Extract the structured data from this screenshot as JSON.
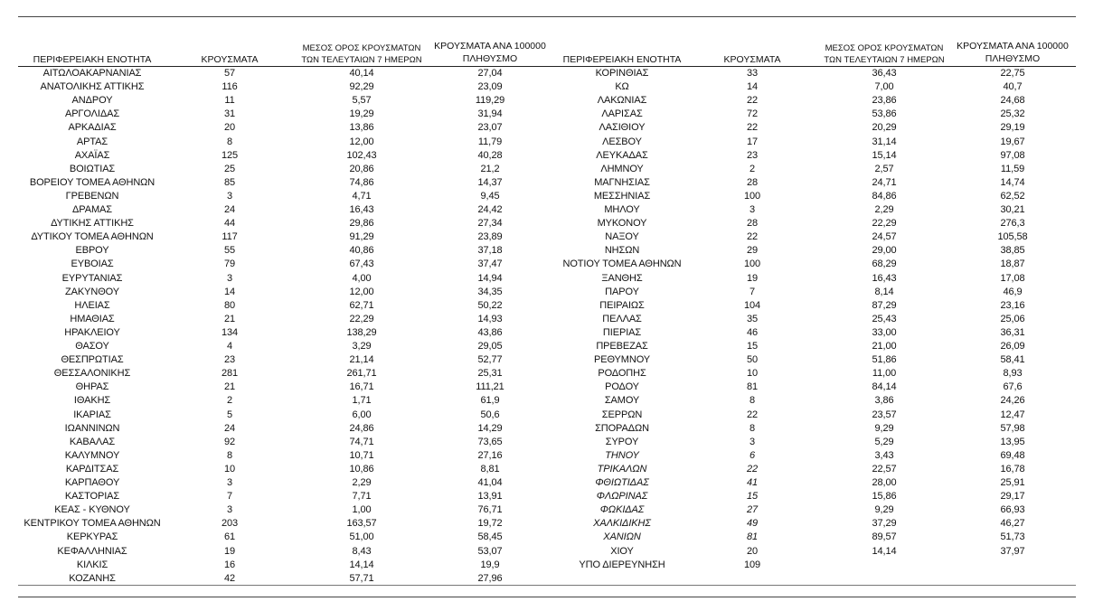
{
  "headers": {
    "name": "ΠΕΡΙΦΕΡΕΙΑΚΗ ΕΝΟΤΗΤΑ",
    "cases": "ΚΡΟΥΣΜΑΤΑ",
    "avg_line1": "ΜΕΣΟΣ ΟΡΟΣ ΚΡΟΥΣΜΑΤΩΝ",
    "avg_line2": "ΤΩΝ ΤΕΛΕΥΤΑΙΩΝ 7 ΗΜΕΡΩΝ",
    "per_line1": "ΚΡΟΥΣΜΑΤΑ ΑΝΑ 100000",
    "per_line2": "ΠΛΗΘΥΣΜΟ"
  },
  "left_rows": [
    [
      "ΑΙΤΩΛΟΑΚΑΡΝΑΝΙΑΣ",
      "57",
      "40,14",
      "27,04"
    ],
    [
      "ΑΝΑΤΟΛΙΚΗΣ ΑΤΤΙΚΗΣ",
      "116",
      "92,29",
      "23,09"
    ],
    [
      "ΑΝΔΡΟΥ",
      "11",
      "5,57",
      "119,29"
    ],
    [
      "ΑΡΓΟΛΙΔΑΣ",
      "31",
      "19,29",
      "31,94"
    ],
    [
      "ΑΡΚΑΔΙΑΣ",
      "20",
      "13,86",
      "23,07"
    ],
    [
      "ΑΡΤΑΣ",
      "8",
      "12,00",
      "11,79"
    ],
    [
      "ΑΧΑΪΑΣ",
      "125",
      "102,43",
      "40,28"
    ],
    [
      "ΒΟΙΩΤΙΑΣ",
      "25",
      "20,86",
      "21,2"
    ],
    [
      "ΒΟΡΕΙΟΥ ΤΟΜΕΑ ΑΘΗΝΩΝ",
      "85",
      "74,86",
      "14,37"
    ],
    [
      "ΓΡΕΒΕΝΩΝ",
      "3",
      "4,71",
      "9,45"
    ],
    [
      "ΔΡΑΜΑΣ",
      "24",
      "16,43",
      "24,42"
    ],
    [
      "ΔΥΤΙΚΗΣ ΑΤΤΙΚΗΣ",
      "44",
      "29,86",
      "27,34"
    ],
    [
      "ΔΥΤΙΚΟΥ ΤΟΜΕΑ ΑΘΗΝΩΝ",
      "117",
      "91,29",
      "23,89"
    ],
    [
      "ΕΒΡΟΥ",
      "55",
      "40,86",
      "37,18"
    ],
    [
      "ΕΥΒΟΙΑΣ",
      "79",
      "67,43",
      "37,47"
    ],
    [
      "ΕΥΡΥΤΑΝΙΑΣ",
      "3",
      "4,00",
      "14,94"
    ],
    [
      "ΖΑΚΥΝΘΟΥ",
      "14",
      "12,00",
      "34,35"
    ],
    [
      "ΗΛΕΙΑΣ",
      "80",
      "62,71",
      "50,22"
    ],
    [
      "ΗΜΑΘΙΑΣ",
      "21",
      "22,29",
      "14,93"
    ],
    [
      "ΗΡΑΚΛΕΙΟΥ",
      "134",
      "138,29",
      "43,86"
    ],
    [
      "ΘΑΣΟΥ",
      "4",
      "3,29",
      "29,05"
    ],
    [
      "ΘΕΣΠΡΩΤΙΑΣ",
      "23",
      "21,14",
      "52,77"
    ],
    [
      "ΘΕΣΣΑΛΟΝΙΚΗΣ",
      "281",
      "261,71",
      "25,31"
    ],
    [
      "ΘΗΡΑΣ",
      "21",
      "16,71",
      "111,21"
    ],
    [
      "ΙΘΑΚΗΣ",
      "2",
      "1,71",
      "61,9"
    ],
    [
      "ΙΚΑΡΙΑΣ",
      "5",
      "6,00",
      "50,6"
    ],
    [
      "ΙΩΑΝΝΙΝΩΝ",
      "24",
      "24,86",
      "14,29"
    ],
    [
      "ΚΑΒΑΛΑΣ",
      "92",
      "74,71",
      "73,65"
    ],
    [
      "ΚΑΛΥΜΝΟΥ",
      "8",
      "10,71",
      "27,16"
    ],
    [
      "ΚΑΡΔΙΤΣΑΣ",
      "10",
      "10,86",
      "8,81"
    ],
    [
      "ΚΑΡΠΑΘΟΥ",
      "3",
      "2,29",
      "41,04"
    ],
    [
      "ΚΑΣΤΟΡΙΑΣ",
      "7",
      "7,71",
      "13,91"
    ],
    [
      "ΚΕΑΣ - ΚΥΘΝΟΥ",
      "3",
      "1,00",
      "76,71"
    ],
    [
      "ΚΕΝΤΡΙΚΟΥ ΤΟΜΕΑ ΑΘΗΝΩΝ",
      "203",
      "163,57",
      "19,72"
    ],
    [
      "ΚΕΡΚΥΡΑΣ",
      "61",
      "51,00",
      "58,45"
    ],
    [
      "ΚΕΦΑΛΛΗΝΙΑΣ",
      "19",
      "8,43",
      "53,07"
    ],
    [
      "ΚΙΛΚΙΣ",
      "16",
      "14,14",
      "19,9"
    ],
    [
      "ΚΟΖΑΝΗΣ",
      "42",
      "57,71",
      "27,96"
    ]
  ],
  "right_rows": [
    [
      "ΚΟΡΙΝΘΙΑΣ",
      "33",
      "36,43",
      "22,75"
    ],
    [
      "ΚΩ",
      "14",
      "7,00",
      "40,7"
    ],
    [
      "ΛΑΚΩΝΙΑΣ",
      "22",
      "23,86",
      "24,68"
    ],
    [
      "ΛΑΡΙΣΑΣ",
      "72",
      "53,86",
      "25,32"
    ],
    [
      "ΛΑΣΙΘΙΟΥ",
      "22",
      "20,29",
      "29,19"
    ],
    [
      "ΛΕΣΒΟΥ",
      "17",
      "31,14",
      "19,67"
    ],
    [
      "ΛΕΥΚΑΔΑΣ",
      "23",
      "15,14",
      "97,08"
    ],
    [
      "ΛΗΜΝΟΥ",
      "2",
      "2,57",
      "11,59"
    ],
    [
      "ΜΑΓΝΗΣΙΑΣ",
      "28",
      "24,71",
      "14,74"
    ],
    [
      "ΜΕΣΣΗΝΙΑΣ",
      "100",
      "84,86",
      "62,52"
    ],
    [
      "ΜΗΛΟΥ",
      "3",
      "2,29",
      "30,21"
    ],
    [
      "ΜΥΚΟΝΟΥ",
      "28",
      "22,29",
      "276,3"
    ],
    [
      "ΝΑΞΟΥ",
      "22",
      "24,57",
      "105,58"
    ],
    [
      "ΝΗΣΩΝ",
      "29",
      "29,00",
      "38,85"
    ],
    [
      "ΝΟΤΙΟΥ ΤΟΜΕΑ ΑΘΗΝΩΝ",
      "100",
      "68,29",
      "18,87"
    ],
    [
      "ΞΑΝΘΗΣ",
      "19",
      "16,43",
      "17,08"
    ],
    [
      "ΠΑΡΟΥ",
      "7",
      "8,14",
      "46,9"
    ],
    [
      "ΠΕΙΡΑΙΩΣ",
      "104",
      "87,29",
      "23,16"
    ],
    [
      "ΠΕΛΛΑΣ",
      "35",
      "25,43",
      "25,06"
    ],
    [
      "ΠΙΕΡΙΑΣ",
      "46",
      "33,00",
      "36,31"
    ],
    [
      "ΠΡΕΒΕΖΑΣ",
      "15",
      "21,00",
      "26,09"
    ],
    [
      "ΡΕΘΥΜΝΟΥ",
      "50",
      "51,86",
      "58,41"
    ],
    [
      "ΡΟΔΟΠΗΣ",
      "10",
      "11,00",
      "8,93"
    ],
    [
      "ΡΟΔΟΥ",
      "81",
      "84,14",
      "67,6"
    ],
    [
      "ΣΑΜΟΥ",
      "8",
      "3,86",
      "24,26"
    ],
    [
      "ΣΕΡΡΩΝ",
      "22",
      "23,57",
      "12,47"
    ],
    [
      "ΣΠΟΡΑΔΩΝ",
      "8",
      "9,29",
      "57,98"
    ],
    [
      "ΣΥΡΟΥ",
      "3",
      "5,29",
      "13,95"
    ],
    [
      "ΤΗΝΟΥ",
      "6",
      "3,43",
      "69,48"
    ],
    [
      "ΤΡΙΚΑΛΩΝ",
      "22",
      "22,57",
      "16,78"
    ],
    [
      "ΦΘΙΩΤΙΔΑΣ",
      "41",
      "28,00",
      "25,91"
    ],
    [
      "ΦΛΩΡΙΝΑΣ",
      "15",
      "15,86",
      "29,17"
    ],
    [
      "ΦΩΚΙΔΑΣ",
      "27",
      "9,29",
      "66,93"
    ],
    [
      "ΧΑΛΚΙΔΙΚΗΣ",
      "49",
      "37,29",
      "46,27"
    ],
    [
      "ΧΑΝΙΩΝ",
      "81",
      "89,57",
      "51,73"
    ],
    [
      "ΧΙΟΥ",
      "20",
      "14,14",
      "37,97"
    ],
    [
      "ΥΠΟ ΔΙΕΡΕΥΝΗΣΗ",
      "109",
      "",
      ""
    ]
  ],
  "italic_right_names": [
    "ΤΗΝΟΥ",
    "ΤΡΙΚΑΛΩΝ",
    "ΦΘΙΩΤΙΔΑΣ",
    "ΦΛΩΡΙΝΑΣ",
    "ΦΩΚΙΔΑΣ",
    "ΧΑΛΚΙΔΙΚΗΣ",
    "ΧΑΝΙΩΝ"
  ]
}
